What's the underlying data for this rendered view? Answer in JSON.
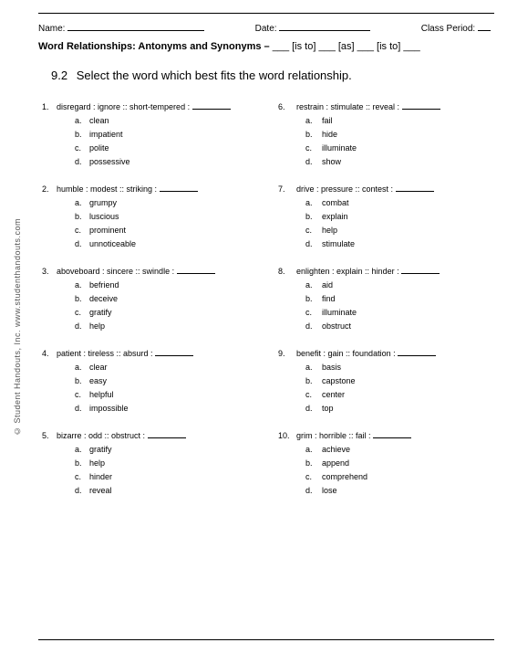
{
  "sidebar": "© Student Handouts, Inc.                               www.studenthandouts.com",
  "header": {
    "name_label": "Name:",
    "date_label": "Date:",
    "period_label": "Class Period:"
  },
  "title": {
    "bold": "Word Relationships: Antonyms and Synonyms – ",
    "tail": "___ [is to] ___ [as] ___ [is to] ___"
  },
  "section": {
    "num": "9.2",
    "text": "Select the word which best fits the word relationship."
  },
  "left": [
    {
      "n": "1.",
      "stem": "disregard : ignore :: short-tempered :",
      "opts": [
        "clean",
        "impatient",
        "polite",
        "possessive"
      ]
    },
    {
      "n": "2.",
      "stem": "humble : modest :: striking :",
      "opts": [
        "grumpy",
        "luscious",
        "prominent",
        "unnoticeable"
      ]
    },
    {
      "n": "3.",
      "stem": "aboveboard : sincere :: swindle :",
      "opts": [
        "befriend",
        "deceive",
        "gratify",
        "help"
      ]
    },
    {
      "n": "4.",
      "stem": "patient : tireless :: absurd :",
      "opts": [
        "clear",
        "easy",
        "helpful",
        "impossible"
      ]
    },
    {
      "n": "5.",
      "stem": "bizarre : odd :: obstruct :",
      "opts": [
        "gratify",
        "help",
        "hinder",
        "reveal"
      ]
    }
  ],
  "right": [
    {
      "n": "6.",
      "stem": "restrain : stimulate :: reveal :",
      "opts": [
        "fail",
        "hide",
        "illuminate",
        "show"
      ]
    },
    {
      "n": "7.",
      "stem": "drive : pressure :: contest :",
      "opts": [
        "combat",
        "explain",
        "help",
        "stimulate"
      ]
    },
    {
      "n": "8.",
      "stem": "enlighten : explain :: hinder :",
      "opts": [
        "aid",
        "find",
        "illuminate",
        "obstruct"
      ]
    },
    {
      "n": "9.",
      "stem": "benefit : gain :: foundation :",
      "opts": [
        "basis",
        "capstone",
        "center",
        "top"
      ]
    },
    {
      "n": "10.",
      "stem": "grim : horrible :: fail :",
      "opts": [
        "achieve",
        "append",
        "comprehend",
        "lose"
      ]
    }
  ],
  "letters": [
    "a.",
    "b.",
    "c.",
    "d."
  ]
}
